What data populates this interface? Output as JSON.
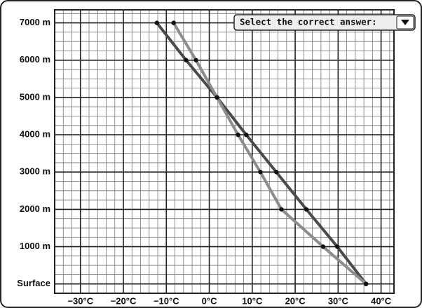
{
  "chart_data": {
    "type": "line",
    "dropdown_label": "Select the correct answer:",
    "y": [
      0,
      1000,
      2000,
      3000,
      4000,
      5000,
      6000,
      7000
    ],
    "series": [
      {
        "color": "#4a4a4a",
        "values": [
          36.5,
          29.8,
          22.6,
          15.6,
          8.6,
          1.8,
          -5.4,
          -12.2
        ]
      },
      {
        "color": "#8c8c8c",
        "values": [
          36.5,
          26.5,
          16.8,
          11.9,
          6.7,
          1.8,
          -3.1,
          -8.3
        ]
      }
    ],
    "xlim": [
      -36,
      43
    ],
    "ylim": [
      -250,
      7350
    ],
    "xticks": [
      {
        "value": -30,
        "label": "−30°C"
      },
      {
        "value": -20,
        "label": "−20°C"
      },
      {
        "value": -10,
        "label": "−10°C"
      },
      {
        "value": 0,
        "label": "0°C"
      },
      {
        "value": 10,
        "label": "10°C"
      },
      {
        "value": 20,
        "label": "20°C"
      },
      {
        "value": 30,
        "label": "30°C"
      },
      {
        "value": 40,
        "label": "40°C"
      }
    ],
    "yticks": [
      {
        "value": 0,
        "label": "Surface"
      },
      {
        "value": 1000,
        "label": "1000 m"
      },
      {
        "value": 2000,
        "label": "2000 m"
      },
      {
        "value": 3000,
        "label": "3000 m"
      },
      {
        "value": 4000,
        "label": "4000 m"
      },
      {
        "value": 5000,
        "label": "5000 m"
      },
      {
        "value": 6000,
        "label": "6000 m"
      },
      {
        "value": 7000,
        "label": "7000 m"
      }
    ],
    "grid": true,
    "minor_grid": {
      "x": 2,
      "y": 250
    }
  }
}
